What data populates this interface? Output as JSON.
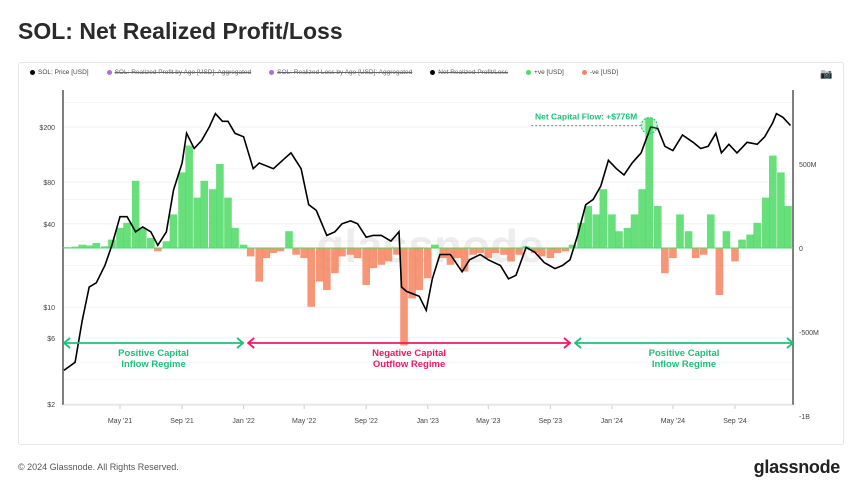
{
  "title": "SOL: Net Realized Profit/Loss",
  "legend": [
    {
      "label": "SOL: Price [USD]",
      "color": "#000000",
      "struck": false
    },
    {
      "label": "SOL: Realized Profit by Age [USD]: Aggregated",
      "color": "#b36ae2",
      "struck": true
    },
    {
      "label": "SOL: Realized Loss by Age [USD]: Aggregated",
      "color": "#b36ae2",
      "struck": true
    },
    {
      "label": "Net Realized Profit/Loss",
      "color": "#000000",
      "struck": true
    },
    {
      "label": "+ve [USD]",
      "color": "#4cd964",
      "struck": false
    },
    {
      "label": "-ve [USD]",
      "color": "#f4845f",
      "struck": false
    }
  ],
  "camera_icon": "camera-icon",
  "footer": "© 2024 Glassnode. All Rights Reserved.",
  "logo": "glassnode",
  "watermark": "glassnode",
  "chart_data": {
    "type": "bar+line",
    "left_axis": {
      "scale": "log",
      "ticks": [
        "$2",
        "$6",
        "$10",
        "$40",
        "$80",
        "$200"
      ],
      "tick_values": [
        2,
        6,
        10,
        40,
        80,
        200
      ]
    },
    "right_axis": {
      "ticks": [
        "-1B",
        "-500M",
        "0",
        "500M"
      ],
      "tick_values": [
        -1000,
        -500,
        0,
        500
      ],
      "unit": "USD millions"
    },
    "x_ticks": [
      "May '21",
      "Sep '21",
      "Jan '22",
      "May '22",
      "Sep '22",
      "Jan '23",
      "May '23",
      "Sep '23",
      "Jan '24",
      "May '24",
      "Sep '24"
    ],
    "x_tick_dates": [
      "2021-05-01",
      "2021-09-01",
      "2022-01-01",
      "2022-05-01",
      "2022-09-01",
      "2023-01-01",
      "2023-05-01",
      "2023-09-01",
      "2024-01-01",
      "2024-05-01",
      "2024-09-01"
    ],
    "colors": {
      "price": "#000000",
      "positive": "#4cd964",
      "negative": "#f4845f",
      "inflow": "#1fbf7a",
      "outflow": "#f0185f"
    },
    "price": [
      [
        "2021-01-10",
        3.5
      ],
      [
        "2021-02-01",
        4
      ],
      [
        "2021-02-15",
        8
      ],
      [
        "2021-03-01",
        14
      ],
      [
        "2021-03-15",
        15
      ],
      [
        "2021-04-01",
        20
      ],
      [
        "2021-04-15",
        28
      ],
      [
        "2021-05-01",
        45
      ],
      [
        "2021-05-15",
        45
      ],
      [
        "2021-06-01",
        35
      ],
      [
        "2021-06-15",
        38
      ],
      [
        "2021-07-01",
        35
      ],
      [
        "2021-07-15",
        28
      ],
      [
        "2021-08-01",
        35
      ],
      [
        "2021-08-15",
        70
      ],
      [
        "2021-09-01",
        110
      ],
      [
        "2021-09-10",
        180
      ],
      [
        "2021-09-25",
        140
      ],
      [
        "2021-10-10",
        160
      ],
      [
        "2021-10-25",
        200
      ],
      [
        "2021-11-06",
        250
      ],
      [
        "2021-11-20",
        220
      ],
      [
        "2021-12-01",
        220
      ],
      [
        "2021-12-15",
        180
      ],
      [
        "2022-01-01",
        170
      ],
      [
        "2022-01-20",
        100
      ],
      [
        "2022-02-01",
        110
      ],
      [
        "2022-03-01",
        100
      ],
      [
        "2022-03-25",
        120
      ],
      [
        "2022-04-05",
        130
      ],
      [
        "2022-04-25",
        100
      ],
      [
        "2022-05-10",
        55
      ],
      [
        "2022-05-25",
        50
      ],
      [
        "2022-06-15",
        33
      ],
      [
        "2022-07-01",
        35
      ],
      [
        "2022-07-15",
        40
      ],
      [
        "2022-08-01",
        42
      ],
      [
        "2022-08-15",
        40
      ],
      [
        "2022-09-01",
        32
      ],
      [
        "2022-09-15",
        33
      ],
      [
        "2022-10-01",
        33
      ],
      [
        "2022-10-20",
        30
      ],
      [
        "2022-11-05",
        35
      ],
      [
        "2022-11-10",
        14
      ],
      [
        "2022-11-20",
        13
      ],
      [
        "2022-12-15",
        12
      ],
      [
        "2022-12-29",
        9.5
      ],
      [
        "2023-01-10",
        16
      ],
      [
        "2023-01-25",
        24
      ],
      [
        "2023-02-15",
        24
      ],
      [
        "2023-03-10",
        18
      ],
      [
        "2023-03-25",
        22
      ],
      [
        "2023-04-15",
        24
      ],
      [
        "2023-05-01",
        22
      ],
      [
        "2023-05-25",
        20
      ],
      [
        "2023-06-10",
        16
      ],
      [
        "2023-06-25",
        17
      ],
      [
        "2023-07-15",
        27
      ],
      [
        "2023-08-01",
        25
      ],
      [
        "2023-08-20",
        21
      ],
      [
        "2023-09-10",
        19
      ],
      [
        "2023-09-25",
        20
      ],
      [
        "2023-10-10",
        22
      ],
      [
        "2023-10-25",
        33
      ],
      [
        "2023-11-10",
        55
      ],
      [
        "2023-11-25",
        60
      ],
      [
        "2023-12-10",
        75
      ],
      [
        "2023-12-25",
        115
      ],
      [
        "2024-01-10",
        100
      ],
      [
        "2024-01-25",
        90
      ],
      [
        "2024-02-10",
        110
      ],
      [
        "2024-02-28",
        130
      ],
      [
        "2024-03-18",
        200
      ],
      [
        "2024-04-01",
        195
      ],
      [
        "2024-04-15",
        145
      ],
      [
        "2024-05-01",
        135
      ],
      [
        "2024-05-20",
        175
      ],
      [
        "2024-06-10",
        155
      ],
      [
        "2024-06-25",
        140
      ],
      [
        "2024-07-10",
        145
      ],
      [
        "2024-07-25",
        180
      ],
      [
        "2024-08-05",
        130
      ],
      [
        "2024-08-20",
        150
      ],
      [
        "2024-09-05",
        130
      ],
      [
        "2024-09-25",
        155
      ],
      [
        "2024-10-15",
        150
      ],
      [
        "2024-10-30",
        170
      ],
      [
        "2024-11-15",
        215
      ],
      [
        "2024-11-22",
        250
      ],
      [
        "2024-12-05",
        235
      ],
      [
        "2024-12-20",
        205
      ]
    ],
    "net_realized_pl_musd": [
      [
        "2021-01-15",
        5
      ],
      [
        "2021-02-01",
        8
      ],
      [
        "2021-02-15",
        20
      ],
      [
        "2021-03-01",
        15
      ],
      [
        "2021-03-15",
        30
      ],
      [
        "2021-04-01",
        10
      ],
      [
        "2021-04-15",
        50
      ],
      [
        "2021-05-01",
        120
      ],
      [
        "2021-05-15",
        150
      ],
      [
        "2021-06-01",
        400
      ],
      [
        "2021-06-15",
        120
      ],
      [
        "2021-07-01",
        60
      ],
      [
        "2021-07-15",
        -20
      ],
      [
        "2021-08-01",
        40
      ],
      [
        "2021-08-15",
        200
      ],
      [
        "2021-09-01",
        450
      ],
      [
        "2021-09-15",
        610
      ],
      [
        "2021-10-01",
        300
      ],
      [
        "2021-10-15",
        400
      ],
      [
        "2021-11-01",
        350
      ],
      [
        "2021-11-15",
        500
      ],
      [
        "2021-12-01",
        300
      ],
      [
        "2021-12-15",
        120
      ],
      [
        "2022-01-01",
        20
      ],
      [
        "2022-01-15",
        -50
      ],
      [
        "2022-02-01",
        -200
      ],
      [
        "2022-02-15",
        -60
      ],
      [
        "2022-03-01",
        -30
      ],
      [
        "2022-03-15",
        -20
      ],
      [
        "2022-04-01",
        100
      ],
      [
        "2022-04-15",
        -40
      ],
      [
        "2022-05-01",
        -60
      ],
      [
        "2022-05-15",
        -350
      ],
      [
        "2022-06-01",
        -200
      ],
      [
        "2022-06-15",
        -250
      ],
      [
        "2022-07-01",
        -150
      ],
      [
        "2022-07-15",
        -50
      ],
      [
        "2022-08-01",
        -40
      ],
      [
        "2022-08-15",
        -60
      ],
      [
        "2022-09-01",
        -220
      ],
      [
        "2022-09-15",
        -120
      ],
      [
        "2022-10-01",
        -100
      ],
      [
        "2022-10-15",
        -80
      ],
      [
        "2022-11-01",
        -40
      ],
      [
        "2022-11-15",
        -580
      ],
      [
        "2022-12-01",
        -300
      ],
      [
        "2022-12-15",
        -250
      ],
      [
        "2023-01-01",
        -180
      ],
      [
        "2023-01-15",
        20
      ],
      [
        "2023-02-01",
        -60
      ],
      [
        "2023-02-15",
        -100
      ],
      [
        "2023-03-01",
        -60
      ],
      [
        "2023-03-15",
        -140
      ],
      [
        "2023-04-01",
        -40
      ],
      [
        "2023-04-15",
        -30
      ],
      [
        "2023-05-01",
        -60
      ],
      [
        "2023-05-15",
        -30
      ],
      [
        "2023-06-01",
        -40
      ],
      [
        "2023-06-15",
        -80
      ],
      [
        "2023-07-01",
        -40
      ],
      [
        "2023-07-15",
        10
      ],
      [
        "2023-08-01",
        -30
      ],
      [
        "2023-08-15",
        -50
      ],
      [
        "2023-09-01",
        -60
      ],
      [
        "2023-09-15",
        -30
      ],
      [
        "2023-10-01",
        -20
      ],
      [
        "2023-10-15",
        20
      ],
      [
        "2023-11-01",
        150
      ],
      [
        "2023-11-15",
        250
      ],
      [
        "2023-12-01",
        200
      ],
      [
        "2023-12-15",
        350
      ],
      [
        "2024-01-01",
        200
      ],
      [
        "2024-01-15",
        100
      ],
      [
        "2024-02-01",
        120
      ],
      [
        "2024-02-15",
        200
      ],
      [
        "2024-03-01",
        350
      ],
      [
        "2024-03-15",
        776
      ],
      [
        "2024-04-01",
        250
      ],
      [
        "2024-04-15",
        -150
      ],
      [
        "2024-05-01",
        -60
      ],
      [
        "2024-05-15",
        200
      ],
      [
        "2024-06-01",
        100
      ],
      [
        "2024-06-15",
        -60
      ],
      [
        "2024-07-01",
        -40
      ],
      [
        "2024-07-15",
        200
      ],
      [
        "2024-08-01",
        -280
      ],
      [
        "2024-08-15",
        100
      ],
      [
        "2024-09-01",
        -80
      ],
      [
        "2024-09-15",
        50
      ],
      [
        "2024-10-01",
        80
      ],
      [
        "2024-10-15",
        150
      ],
      [
        "2024-11-01",
        300
      ],
      [
        "2024-11-15",
        550
      ],
      [
        "2024-12-01",
        450
      ],
      [
        "2024-12-15",
        250
      ]
    ],
    "annotations": {
      "peak": "Net Capital Flow: +$776M",
      "regimes": [
        {
          "label1": "Positive Capital",
          "label2": "Inflow Regime",
          "kind": "inflow",
          "from": "2021-01-10",
          "to": "2021-12-31"
        },
        {
          "label1": "Negative Capital",
          "label2": "Outflow Regime",
          "kind": "outflow",
          "from": "2022-01-10",
          "to": "2023-10-10"
        },
        {
          "label1": "Positive Capital",
          "label2": "Inflow Regime",
          "kind": "inflow",
          "from": "2023-10-20",
          "to": "2024-12-25"
        }
      ]
    }
  }
}
